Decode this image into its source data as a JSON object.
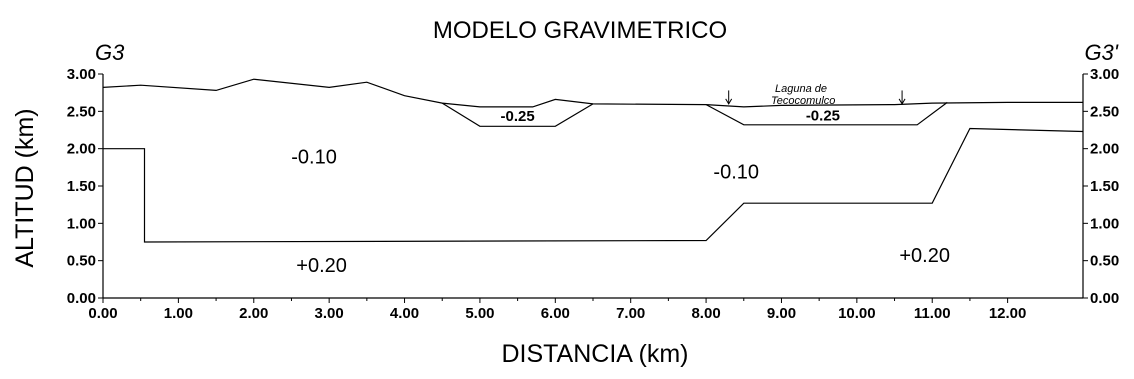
{
  "chart_data": {
    "type": "cross-section",
    "title": "MODELO GRAVIMETRICO",
    "xlabel": "DISTANCIA (km)",
    "ylabel": "ALTITUD (km)",
    "xlim": [
      0,
      13
    ],
    "ylim": [
      0,
      3
    ],
    "x_ticks": [
      "0.00",
      "1.00",
      "2.00",
      "3.00",
      "4.00",
      "5.00",
      "6.00",
      "7.00",
      "8.00",
      "9.00",
      "10.00",
      "11.00",
      "12.00"
    ],
    "y_ticks": [
      "0.00",
      "0.50",
      "1.00",
      "1.50",
      "2.00",
      "2.50",
      "3.00"
    ],
    "section_start": "G3",
    "section_end": "G3'",
    "lake_label_line1": "Laguna de",
    "lake_label_line2": "Tecocomulco",
    "lake_markers_x": [
      8.3,
      10.6
    ],
    "topography": [
      [
        0,
        2.82
      ],
      [
        0.5,
        2.85
      ],
      [
        1.5,
        2.78
      ],
      [
        2.0,
        2.93
      ],
      [
        3.0,
        2.82
      ],
      [
        3.5,
        2.89
      ],
      [
        4.0,
        2.71
      ],
      [
        4.5,
        2.61
      ],
      [
        5.0,
        2.56
      ],
      [
        5.7,
        2.56
      ],
      [
        6.0,
        2.66
      ],
      [
        6.5,
        2.6
      ],
      [
        8.0,
        2.59
      ],
      [
        8.5,
        2.56
      ],
      [
        9.0,
        2.58
      ],
      [
        10.5,
        2.59
      ],
      [
        11.0,
        2.61
      ],
      [
        12.0,
        2.62
      ],
      [
        13.0,
        2.62
      ]
    ],
    "bodies": [
      {
        "label": "-0.25",
        "outline": [
          [
            4.5,
            2.61
          ],
          [
            5.0,
            2.3
          ],
          [
            6.0,
            2.3
          ],
          [
            6.5,
            2.6
          ]
        ]
      },
      {
        "label": "-0.25",
        "outline": [
          [
            8.0,
            2.59
          ],
          [
            8.5,
            2.32
          ],
          [
            10.8,
            2.32
          ],
          [
            11.2,
            2.62
          ]
        ]
      },
      {
        "label": "-0.10",
        "outline": [
          [
            0,
            2.0
          ],
          [
            0.55,
            2.0
          ],
          [
            0.55,
            0.75
          ],
          [
            8.0,
            0.77
          ],
          [
            8.5,
            1.27
          ],
          [
            11.0,
            1.27
          ],
          [
            11.5,
            2.27
          ],
          [
            13.0,
            2.23
          ]
        ]
      }
    ],
    "density_labels": [
      {
        "text": "-0.10",
        "x": 2.8,
        "y": 1.8
      },
      {
        "text": "-0.10",
        "x": 8.4,
        "y": 1.6
      },
      {
        "text": "+0.20",
        "x": 2.9,
        "y": 0.35
      },
      {
        "text": "+0.20",
        "x": 10.9,
        "y": 0.48
      }
    ]
  }
}
